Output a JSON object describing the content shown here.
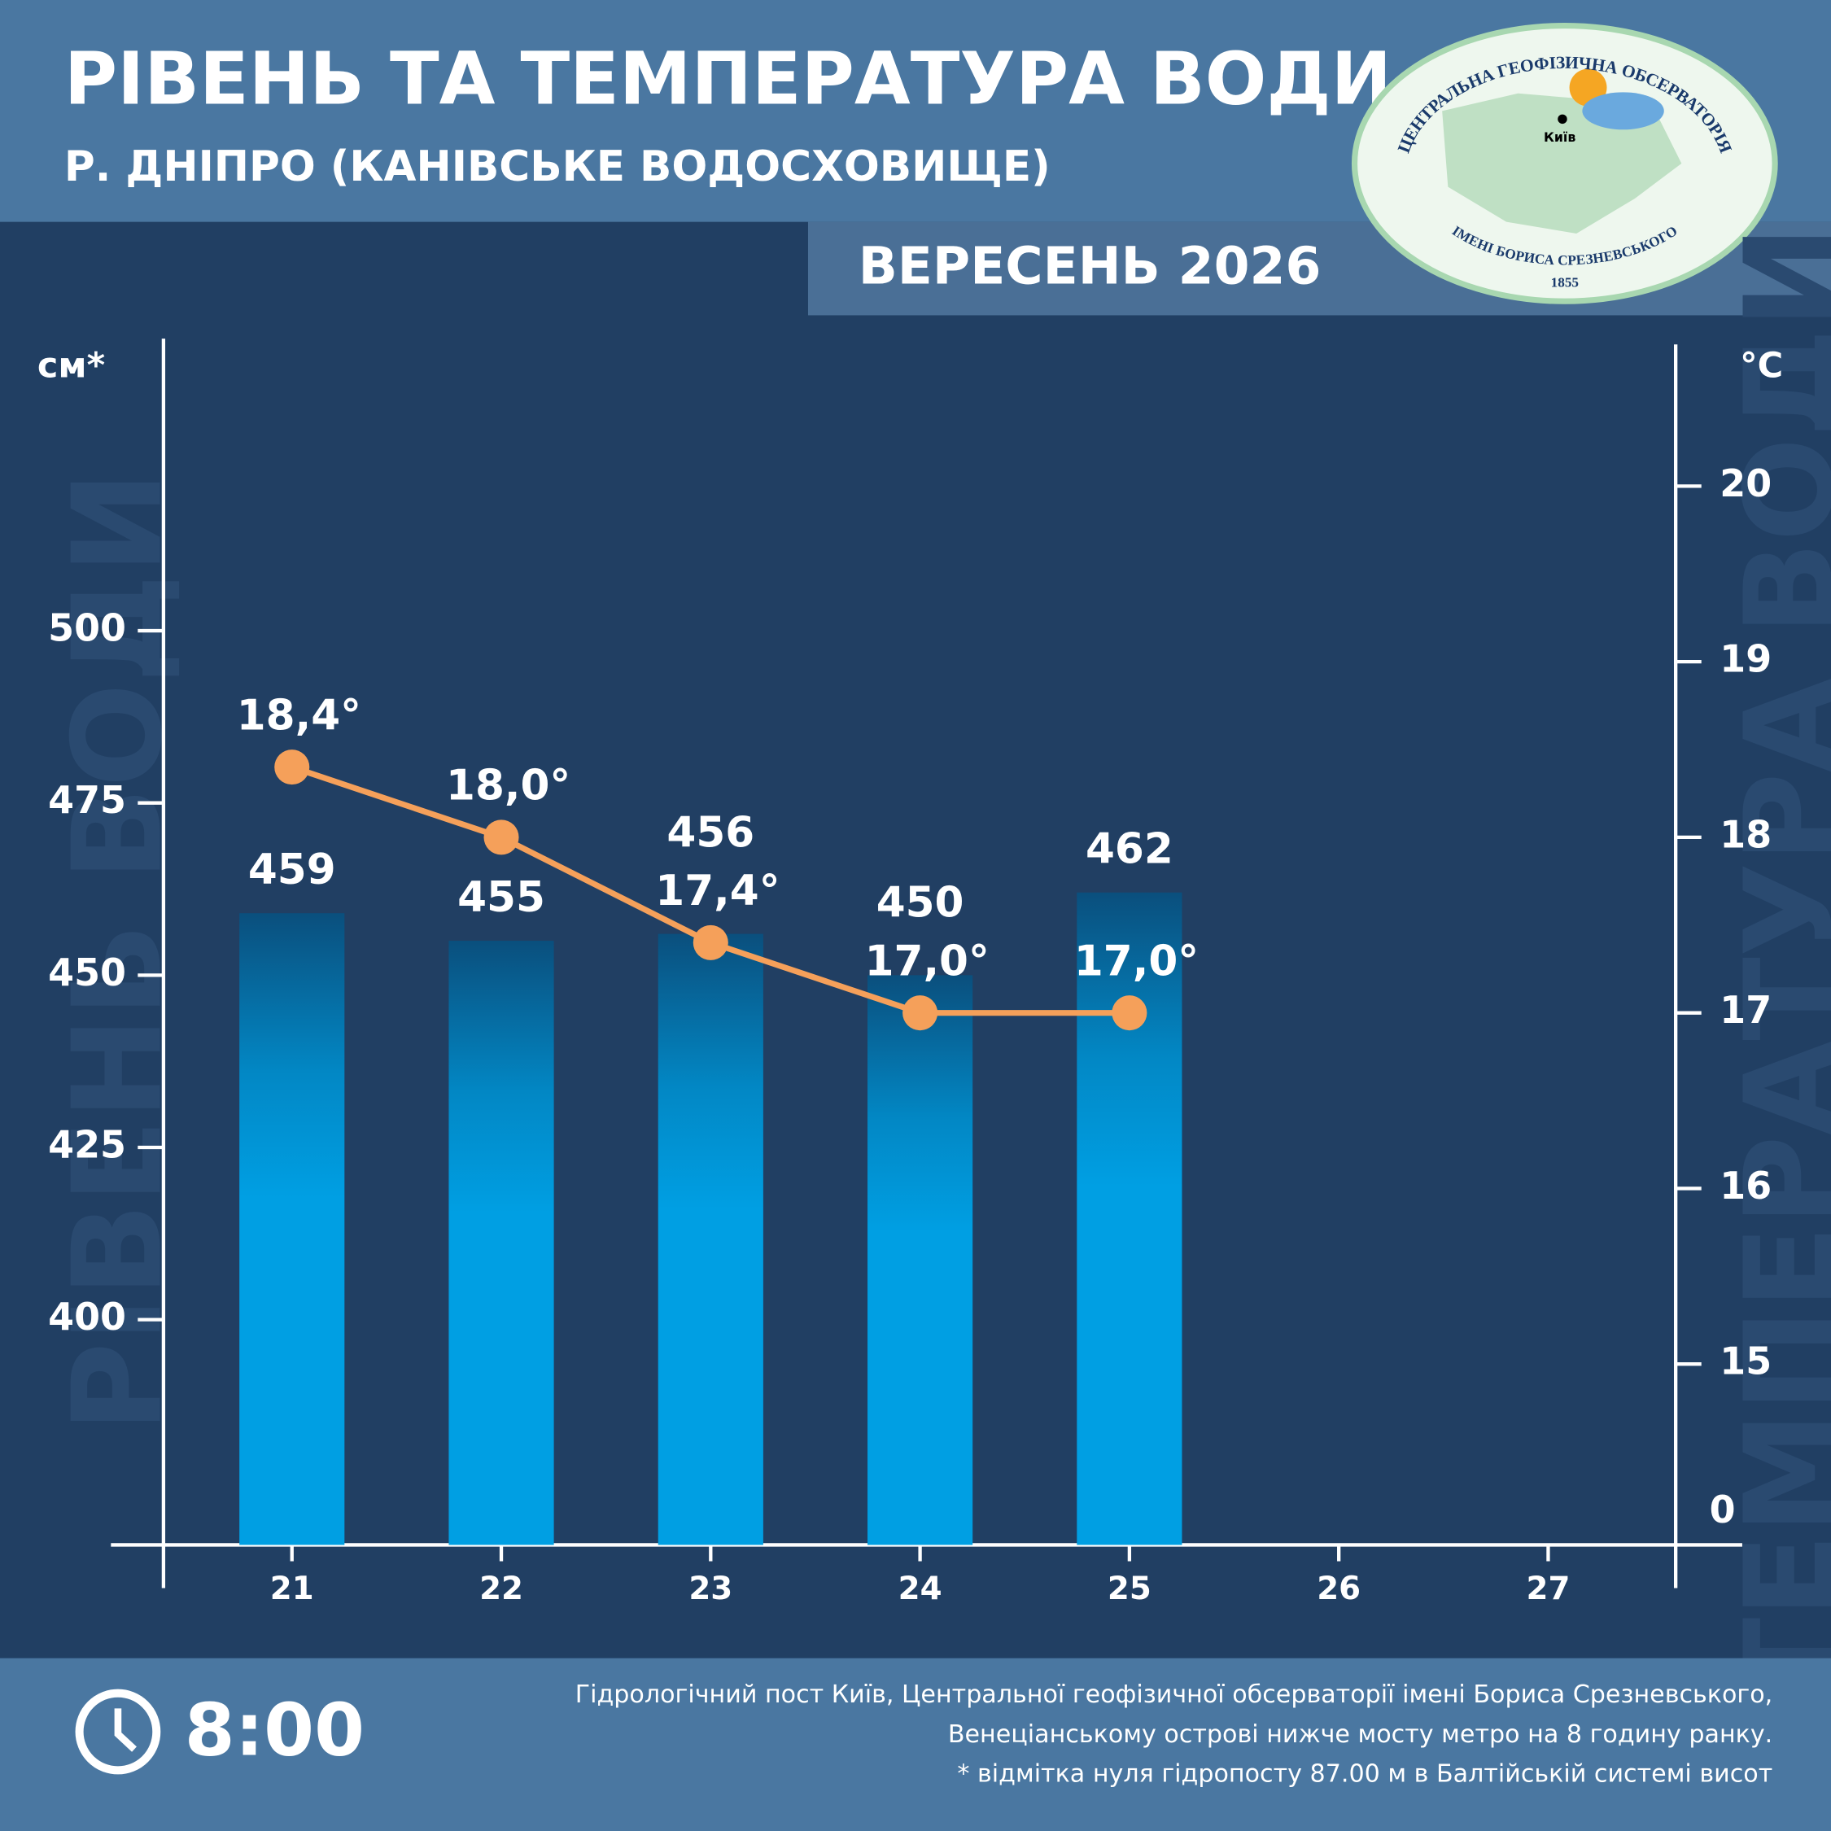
{
  "header": {
    "title": "РІВЕНЬ ТА ТЕМПЕРАТУРА ВОДИ",
    "subtitle": "Р. ДНІПРО (КАНІВСЬКЕ ВОДОСХОВИЩЕ)",
    "period": "ВЕРЕСЕНЬ 2026"
  },
  "logo": {
    "top_text": "ЦЕНТРАЛЬНА ГЕОФІЗИЧНА ОБСЕРВАТОРІЯ",
    "bottom_text": "ІМЕНІ БОРИСА СРЕЗНЕВСЬКОГО",
    "year": "1855",
    "city": "Київ"
  },
  "chart_data": {
    "type": "bar-line",
    "y_unit": "см*",
    "y2_unit": "°C",
    "y_label": "РІВЕНЬ ВОДИ",
    "y2_label": "ТЕМПЕРАТУРА ВОДИ",
    "y2_break_label": "0",
    "categories": [
      "21",
      "22",
      "23",
      "24",
      "25",
      "26",
      "27"
    ],
    "series": [
      {
        "name": "Рівень води",
        "type": "bar",
        "color": "#009fe3",
        "values": [
          459,
          455,
          456,
          450,
          462,
          null,
          null
        ]
      },
      {
        "name": "Температура води",
        "type": "line",
        "axis": "y2",
        "color": "#f5a05a",
        "values": [
          18.4,
          18.0,
          17.4,
          17.0,
          17.0,
          null,
          null
        ],
        "value_labels": [
          "18,4°",
          "18,0°",
          "17,4°",
          "17,0°",
          "17,0°",
          null,
          null
        ]
      }
    ],
    "ylim": [
      367.3,
      542.4
    ],
    "yticks": [
      400,
      425,
      450,
      475,
      500
    ],
    "y2lim": [
      13.97,
      20.84
    ],
    "y2ticks": [
      15,
      16,
      17,
      18,
      19,
      20
    ]
  },
  "footer": {
    "time": "8:00",
    "notes": [
      "Гідрологічний пост Київ, Центральної геофізичної обсерваторії імені Бориса Срезневського,",
      "Венеціанському острові нижче мосту метро  на 8 годину ранку.",
      "* відмітка нуля гідропосту 87.00 м в Балтійській системі висот"
    ]
  }
}
